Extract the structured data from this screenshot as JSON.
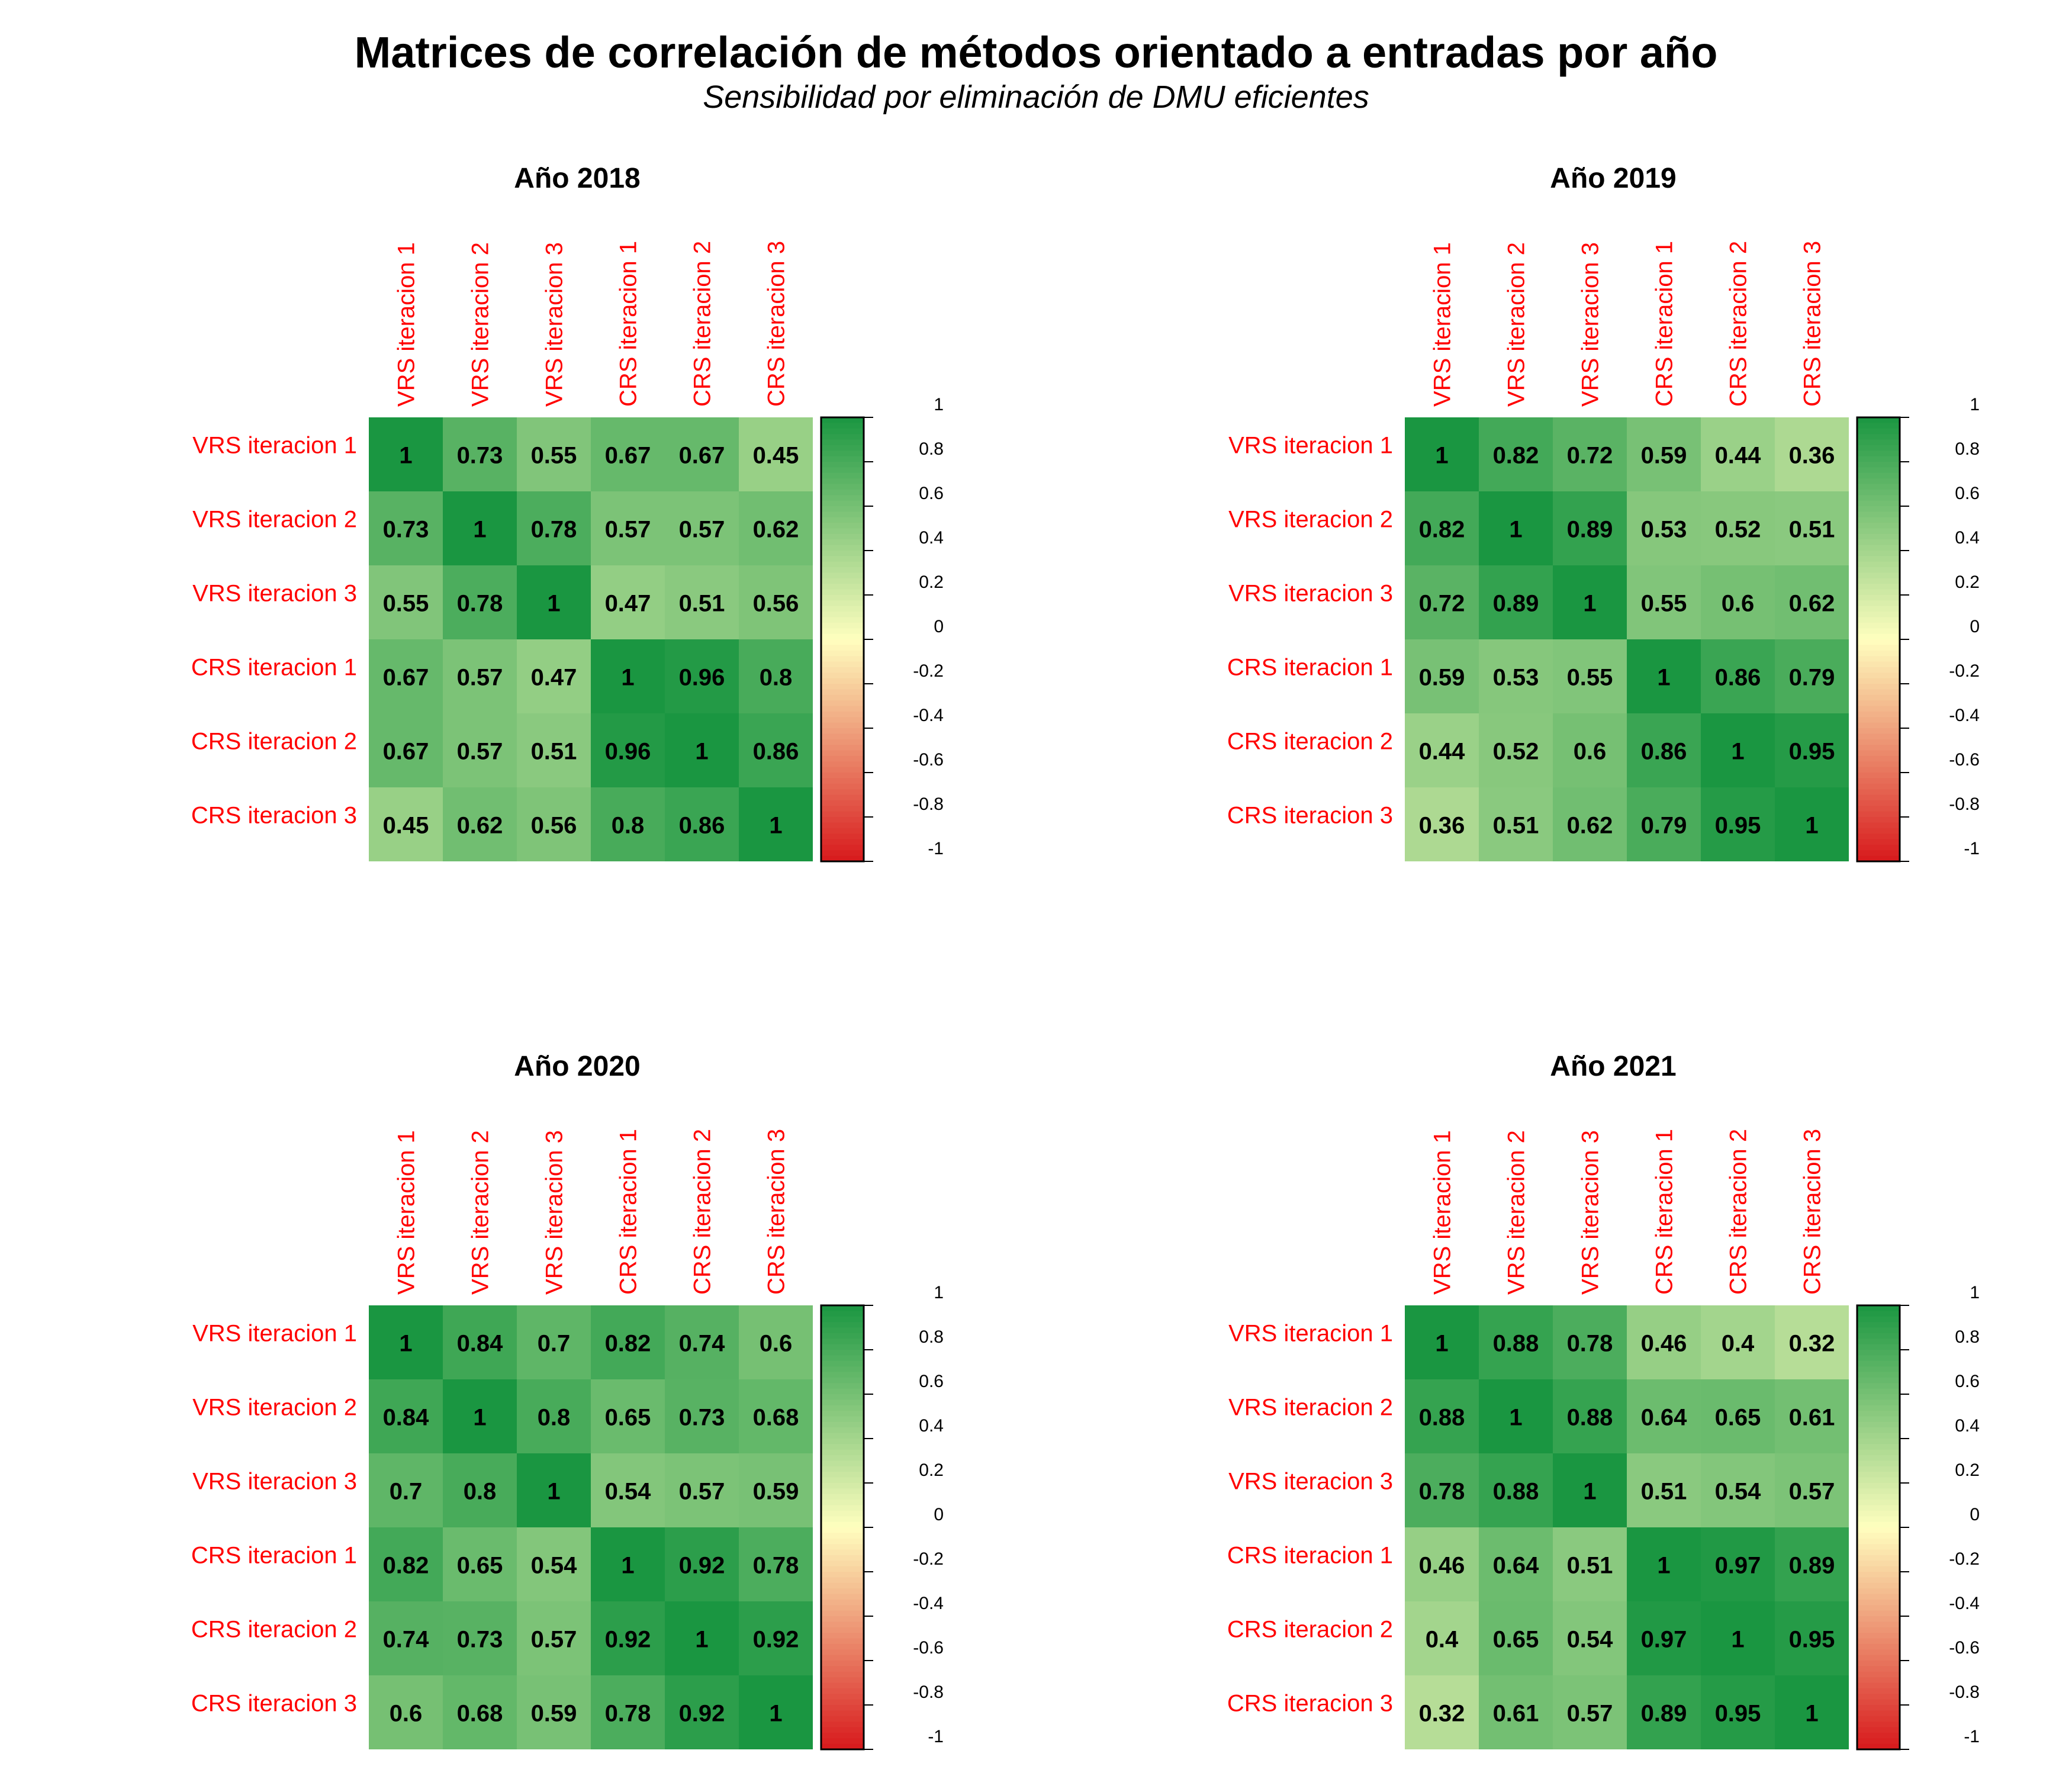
{
  "title": "Matrices de correlación de métodos orientado a entradas por año",
  "subtitle": "Sensibilidad por eliminación de DMU eficientes",
  "colors": {
    "label": "#ff0000",
    "low": "#d7191c",
    "mid": "#ffffbf",
    "high": "#1a9641"
  },
  "colorbar_ticks": [
    "1",
    "0.8",
    "0.6",
    "0.4",
    "0.2",
    "0",
    "-0.2",
    "-0.4",
    "-0.6",
    "-0.8",
    "-1"
  ],
  "chart_data": [
    {
      "type": "heatmap",
      "title": "Año 2018",
      "labels": [
        "VRS iteracion 1",
        "VRS iteracion 2",
        "VRS iteracion 3",
        "CRS iteracion 1",
        "CRS iteracion 2",
        "CRS iteracion 3"
      ],
      "values": [
        [
          1,
          0.73,
          0.55,
          0.67,
          0.67,
          0.45
        ],
        [
          0.73,
          1,
          0.78,
          0.57,
          0.57,
          0.62
        ],
        [
          0.55,
          0.78,
          1,
          0.47,
          0.51,
          0.56
        ],
        [
          0.67,
          0.57,
          0.47,
          1,
          0.96,
          0.8
        ],
        [
          0.67,
          0.57,
          0.51,
          0.96,
          1,
          0.86
        ],
        [
          0.45,
          0.62,
          0.56,
          0.8,
          0.86,
          1
        ]
      ],
      "zlim": [
        -1,
        1
      ]
    },
    {
      "type": "heatmap",
      "title": "Año 2019",
      "labels": [
        "VRS iteracion 1",
        "VRS iteracion 2",
        "VRS iteracion 3",
        "CRS iteracion 1",
        "CRS iteracion 2",
        "CRS iteracion 3"
      ],
      "values": [
        [
          1,
          0.82,
          0.72,
          0.59,
          0.44,
          0.36
        ],
        [
          0.82,
          1,
          0.89,
          0.53,
          0.52,
          0.51
        ],
        [
          0.72,
          0.89,
          1,
          0.55,
          0.6,
          0.62
        ],
        [
          0.59,
          0.53,
          0.55,
          1,
          0.86,
          0.79
        ],
        [
          0.44,
          0.52,
          0.6,
          0.86,
          1,
          0.95
        ],
        [
          0.36,
          0.51,
          0.62,
          0.79,
          0.95,
          1
        ]
      ],
      "zlim": [
        -1,
        1
      ]
    },
    {
      "type": "heatmap",
      "title": "Año 2020",
      "labels": [
        "VRS iteracion 1",
        "VRS iteracion 2",
        "VRS iteracion 3",
        "CRS iteracion 1",
        "CRS iteracion 2",
        "CRS iteracion 3"
      ],
      "values": [
        [
          1,
          0.84,
          0.7,
          0.82,
          0.74,
          0.6
        ],
        [
          0.84,
          1,
          0.8,
          0.65,
          0.73,
          0.68
        ],
        [
          0.7,
          0.8,
          1,
          0.54,
          0.57,
          0.59
        ],
        [
          0.82,
          0.65,
          0.54,
          1,
          0.92,
          0.78
        ],
        [
          0.74,
          0.73,
          0.57,
          0.92,
          1,
          0.92
        ],
        [
          0.6,
          0.68,
          0.59,
          0.78,
          0.92,
          1
        ]
      ],
      "zlim": [
        -1,
        1
      ]
    },
    {
      "type": "heatmap",
      "title": "Año 2021",
      "labels": [
        "VRS iteracion 1",
        "VRS iteracion 2",
        "VRS iteracion 3",
        "CRS iteracion 1",
        "CRS iteracion 2",
        "CRS iteracion 3"
      ],
      "values": [
        [
          1,
          0.88,
          0.78,
          0.46,
          0.4,
          0.32
        ],
        [
          0.88,
          1,
          0.88,
          0.64,
          0.65,
          0.61
        ],
        [
          0.78,
          0.88,
          1,
          0.51,
          0.54,
          0.57
        ],
        [
          0.46,
          0.64,
          0.51,
          1,
          0.97,
          0.89
        ],
        [
          0.4,
          0.65,
          0.54,
          0.97,
          1,
          0.95
        ],
        [
          0.32,
          0.61,
          0.57,
          0.89,
          0.95,
          1
        ]
      ],
      "zlim": [
        -1,
        1
      ]
    }
  ]
}
